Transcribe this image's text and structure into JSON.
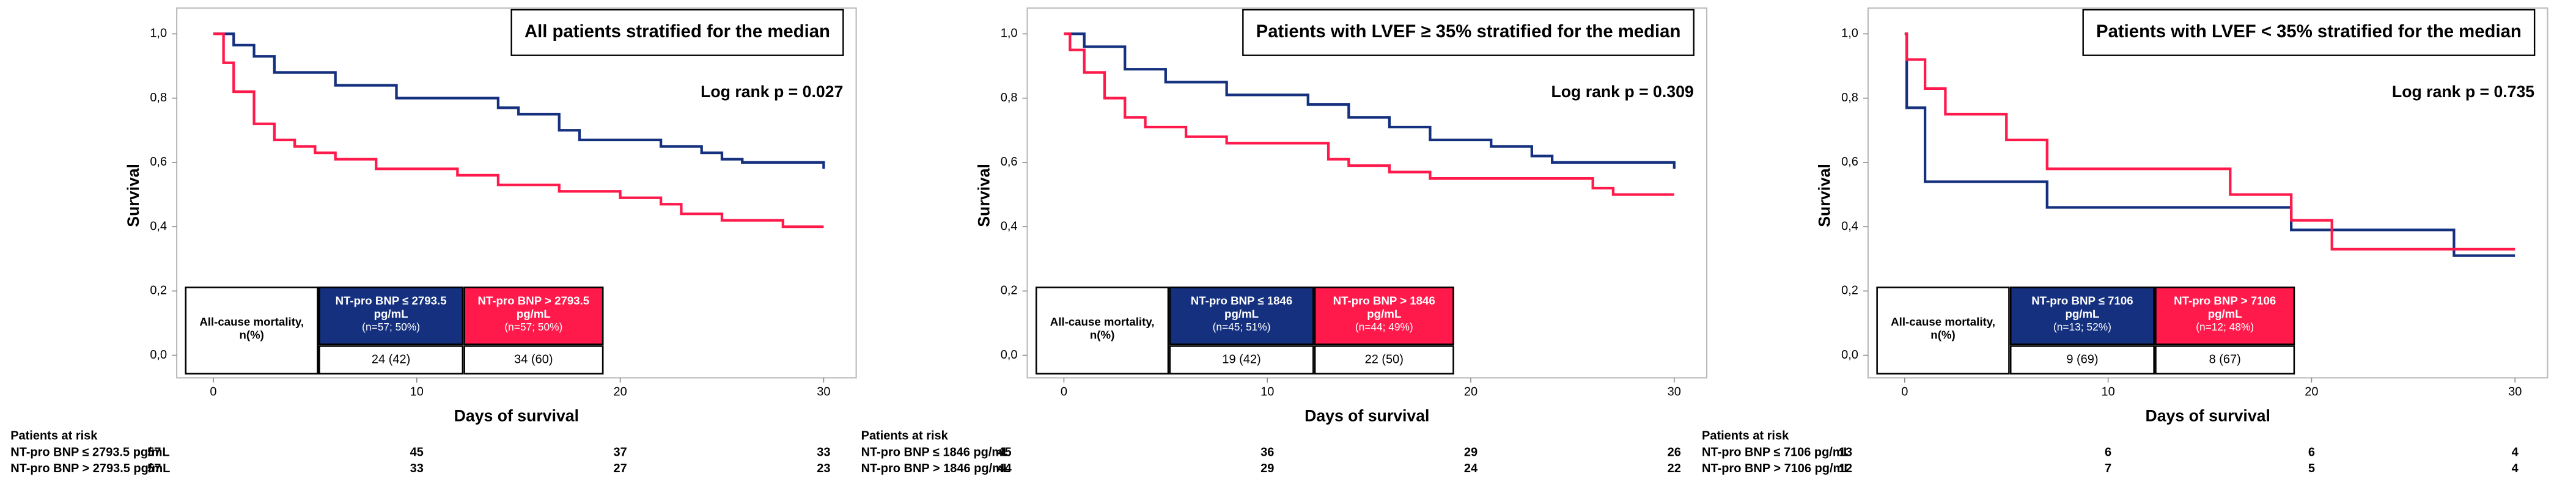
{
  "chart_data": [
    {
      "type": "line",
      "step": "post",
      "title": "All patients stratified for the median",
      "annotation": "Log rank p = 0.027",
      "ylabel": "Survival",
      "xlabel": "Days of survival",
      "xlim": [
        -1.8,
        31.6
      ],
      "xticks": [
        0,
        10,
        20,
        30
      ],
      "ylim": [
        -0.07,
        1.08
      ],
      "yticks": [
        {
          "value": 0,
          "label": "0,0"
        },
        {
          "value": 0.2,
          "label": "0,2"
        },
        {
          "value": 0.4,
          "label": "0,4"
        },
        {
          "value": 0.6,
          "label": "0,6"
        },
        {
          "value": 0.8,
          "label": "0,8"
        },
        {
          "value": 1,
          "label": "1,0"
        }
      ],
      "series": [
        {
          "color": "#14307e",
          "x": [
            0,
            1,
            2,
            3,
            6,
            9,
            14,
            15,
            17,
            18,
            22,
            24,
            25,
            26,
            30
          ],
          "values": [
            1,
            0.965,
            0.93,
            0.88,
            0.84,
            0.8,
            0.77,
            0.75,
            0.7,
            0.67,
            0.65,
            0.63,
            0.61,
            0.6,
            0.58
          ]
        },
        {
          "color": "#ff1a4b",
          "x": [
            0,
            0.5,
            1,
            2,
            3,
            4,
            5,
            6,
            8,
            12,
            14,
            17,
            20,
            22,
            23,
            25,
            28,
            30
          ],
          "values": [
            1,
            0.91,
            0.82,
            0.72,
            0.67,
            0.65,
            0.63,
            0.61,
            0.58,
            0.56,
            0.53,
            0.51,
            0.49,
            0.47,
            0.44,
            0.42,
            0.4,
            0.4
          ]
        }
      ],
      "mortality_table": {
        "header": "All-cause mortality, n(%)",
        "groups": [
          {
            "label": "NT-pro BNP ≤ 2793.5 pg/mL",
            "n": "(n=57; 50%)",
            "count": "24 (42)",
            "color": "#14307e"
          },
          {
            "label": "NT-pro BNP > 2793.5 pg/mL",
            "n": "(n=57; 50%)",
            "count": "34 (60)",
            "color": "#ff1a4b"
          }
        ]
      },
      "risk_table": {
        "title": "Patients at risk",
        "rows": [
          {
            "label": "NT-pro BNP ≤ 2793.5 pg/mL",
            "counts": [
              57,
              45,
              37,
              33
            ]
          },
          {
            "label": "NT-pro BNP > 2793.5 pg/mL",
            "counts": [
              57,
              33,
              27,
              23
            ]
          }
        ]
      }
    },
    {
      "type": "line",
      "step": "post",
      "title": "Patients with LVEF ≥ 35% stratified for the median",
      "annotation": "Log rank p = 0.309",
      "ylabel": "Survival",
      "xlabel": "Days of survival",
      "xlim": [
        -1.8,
        31.6
      ],
      "xticks": [
        0,
        10,
        20,
        30
      ],
      "ylim": [
        -0.07,
        1.08
      ],
      "yticks": [
        {
          "value": 0,
          "label": "0,0"
        },
        {
          "value": 0.2,
          "label": "0,2"
        },
        {
          "value": 0.4,
          "label": "0,4"
        },
        {
          "value": 0.6,
          "label": "0,6"
        },
        {
          "value": 0.8,
          "label": "0,8"
        },
        {
          "value": 1,
          "label": "1,0"
        }
      ],
      "series": [
        {
          "color": "#14307e",
          "x": [
            0,
            1,
            3,
            5,
            8,
            12,
            14,
            16,
            18,
            21,
            23,
            24,
            30
          ],
          "values": [
            1,
            0.96,
            0.89,
            0.85,
            0.81,
            0.78,
            0.74,
            0.71,
            0.67,
            0.65,
            0.62,
            0.6,
            0.58
          ]
        },
        {
          "color": "#ff1a4b",
          "x": [
            0,
            0.3,
            1,
            2,
            3,
            4,
            6,
            8,
            13,
            14,
            16,
            18,
            26,
            27,
            30
          ],
          "values": [
            1,
            0.95,
            0.88,
            0.8,
            0.74,
            0.71,
            0.68,
            0.66,
            0.61,
            0.59,
            0.57,
            0.55,
            0.52,
            0.5,
            0.5
          ]
        }
      ],
      "mortality_table": {
        "header": "All-cause mortality, n(%)",
        "groups": [
          {
            "label": "NT-pro BNP ≤ 1846 pg/mL",
            "n": "(n=45; 51%)",
            "count": "19 (42)",
            "color": "#14307e"
          },
          {
            "label": "NT-pro BNP > 1846 pg/mL",
            "n": "(n=44; 49%)",
            "count": "22 (50)",
            "color": "#ff1a4b"
          }
        ]
      },
      "risk_table": {
        "title": "Patients at risk",
        "rows": [
          {
            "label": "NT-pro BNP ≤ 1846 pg/mL",
            "counts": [
              45,
              36,
              29,
              26
            ]
          },
          {
            "label": "NT-pro BNP > 1846 pg/mL",
            "counts": [
              44,
              29,
              24,
              22
            ]
          }
        ]
      }
    },
    {
      "type": "line",
      "step": "post",
      "title": "Patients with LVEF < 35% stratified for the median",
      "annotation": "Log rank p = 0.735",
      "ylabel": "Survival",
      "xlabel": "Days of survival",
      "xlim": [
        -1.8,
        31.6
      ],
      "xticks": [
        0,
        10,
        20,
        30
      ],
      "ylim": [
        -0.07,
        1.08
      ],
      "yticks": [
        {
          "value": 0,
          "label": "0,0"
        },
        {
          "value": 0.2,
          "label": "0,2"
        },
        {
          "value": 0.4,
          "label": "0,4"
        },
        {
          "value": 0.6,
          "label": "0,6"
        },
        {
          "value": 0.8,
          "label": "0,8"
        },
        {
          "value": 1,
          "label": "1,0"
        }
      ],
      "series": [
        {
          "color": "#14307e",
          "x": [
            0,
            0.1,
            1,
            7,
            19,
            27,
            30
          ],
          "values": [
            1,
            0.77,
            0.54,
            0.46,
            0.39,
            0.31,
            0.31
          ]
        },
        {
          "color": "#ff1a4b",
          "x": [
            0,
            0.1,
            1,
            2,
            5,
            7,
            16,
            19,
            21,
            30
          ],
          "values": [
            1,
            0.92,
            0.83,
            0.75,
            0.67,
            0.58,
            0.5,
            0.42,
            0.33,
            0.33
          ]
        }
      ],
      "mortality_table": {
        "header": "All-cause mortality, n(%)",
        "groups": [
          {
            "label": "NT-pro BNP ≤ 7106 pg/mL",
            "n": "(n=13; 52%)",
            "count": "9 (69)",
            "color": "#14307e"
          },
          {
            "label": "NT-pro BNP > 7106 pg/mL",
            "n": "(n=12; 48%)",
            "count": "8 (67)",
            "color": "#ff1a4b"
          }
        ]
      },
      "risk_table": {
        "title": "Patients at risk",
        "rows": [
          {
            "label": "NT-pro BNP ≤ 7106 pg/mL",
            "counts": [
              13,
              6,
              6,
              4
            ]
          },
          {
            "label": "NT-pro BNP > 7106 pg/mL",
            "counts": [
              12,
              7,
              5,
              4
            ]
          }
        ]
      }
    }
  ]
}
